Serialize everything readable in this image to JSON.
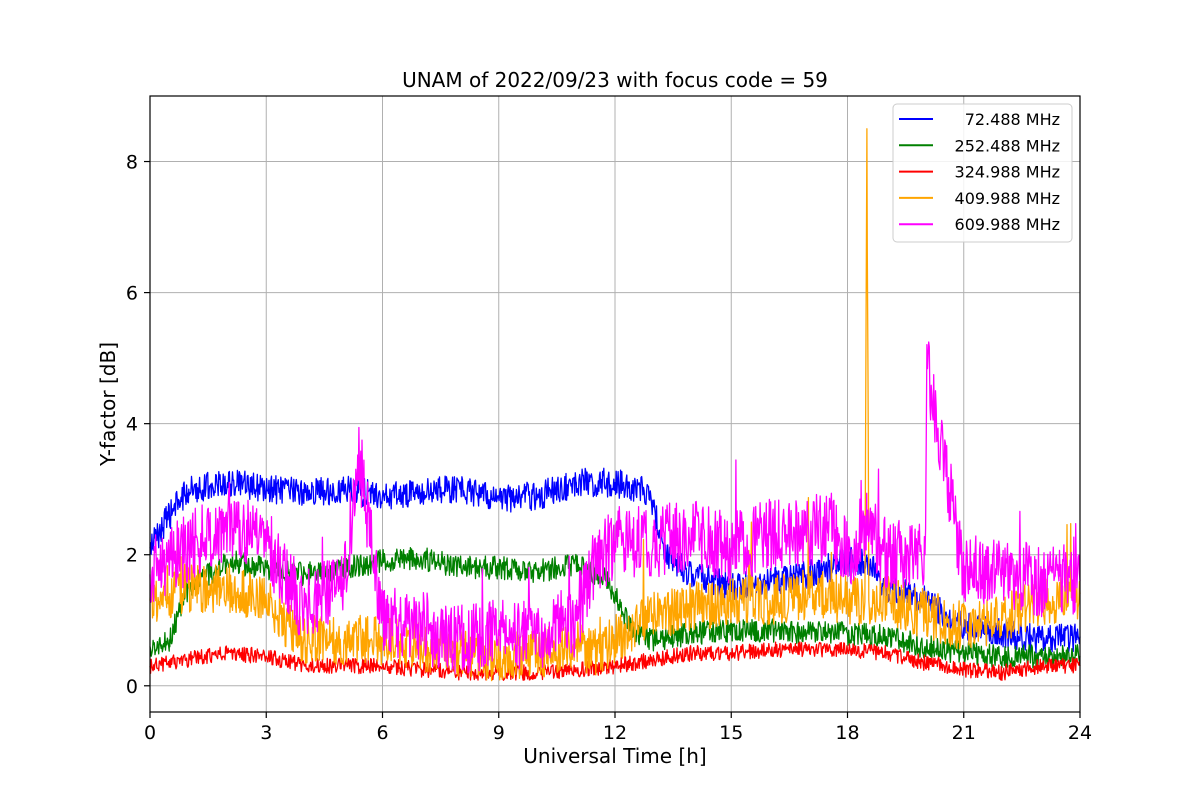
{
  "chart_data": {
    "type": "line",
    "title": "UNAM of 2022/09/23 with focus code = 59",
    "xlabel": "Universal Time [h]",
    "ylabel": "Y-factor [dB]",
    "xlim": [
      0,
      24
    ],
    "ylim": [
      -0.4,
      9.0
    ],
    "xticks": [
      0,
      3,
      6,
      9,
      12,
      15,
      18,
      21,
      24
    ],
    "yticks": [
      0,
      2,
      4,
      6,
      8
    ],
    "grid": true,
    "legend_position": "top-right",
    "series": [
      {
        "name": "72.488 MHz",
        "color": "#0000ff",
        "noise": 0.22,
        "x": [
          0,
          0.5,
          1,
          2,
          3,
          4,
          5,
          6,
          7,
          8,
          9,
          10,
          11,
          12,
          12.9,
          13.3,
          14,
          15,
          16,
          17,
          18,
          18.5,
          19,
          20,
          21,
          22,
          23,
          24
        ],
        "y": [
          2.1,
          2.6,
          3.0,
          3.1,
          3.0,
          2.95,
          3.0,
          2.9,
          2.95,
          3.0,
          2.85,
          2.9,
          3.1,
          3.1,
          2.95,
          2.0,
          1.7,
          1.5,
          1.6,
          1.7,
          1.9,
          1.9,
          1.5,
          1.3,
          0.9,
          0.8,
          0.7,
          0.75
        ]
      },
      {
        "name": "252.488 MHz",
        "color": "#008000",
        "noise": 0.18,
        "x": [
          0,
          0.5,
          1,
          2,
          3,
          4,
          5,
          6,
          7,
          8,
          9,
          10,
          11,
          11.8,
          12.5,
          13,
          14,
          15,
          16,
          17,
          18,
          19,
          20,
          21,
          22,
          23,
          24
        ],
        "y": [
          0.6,
          0.7,
          1.5,
          1.9,
          1.8,
          1.7,
          1.8,
          1.9,
          1.95,
          1.8,
          1.8,
          1.75,
          1.85,
          1.6,
          0.8,
          0.7,
          0.8,
          0.85,
          0.85,
          0.8,
          0.8,
          0.75,
          0.6,
          0.5,
          0.45,
          0.45,
          0.45
        ]
      },
      {
        "name": "324.988 MHz",
        "color": "#ff0000",
        "noise": 0.12,
        "x": [
          0,
          1,
          2,
          3,
          4,
          5,
          6,
          7,
          8,
          9,
          10,
          11,
          12,
          13,
          14,
          15,
          16,
          17,
          18,
          19,
          20,
          21,
          22,
          23,
          24
        ],
        "y": [
          0.3,
          0.4,
          0.5,
          0.45,
          0.3,
          0.3,
          0.3,
          0.25,
          0.2,
          0.2,
          0.2,
          0.25,
          0.3,
          0.4,
          0.5,
          0.5,
          0.55,
          0.55,
          0.55,
          0.5,
          0.35,
          0.25,
          0.2,
          0.3,
          0.3
        ]
      },
      {
        "name": "409.988 MHz",
        "color": "#ffa500",
        "noise": 0.38,
        "x": [
          0,
          1,
          2,
          3,
          3.6,
          4,
          5,
          6,
          7,
          8,
          9,
          10,
          11,
          11.6,
          12,
          13,
          14,
          15,
          16,
          17,
          18,
          18.45,
          18.5,
          18.55,
          19,
          20,
          21,
          22,
          23,
          24
        ],
        "y": [
          1.3,
          1.5,
          1.5,
          1.3,
          0.9,
          0.7,
          0.7,
          0.7,
          0.6,
          0.5,
          0.4,
          0.5,
          0.6,
          0.5,
          0.7,
          1.1,
          1.2,
          1.3,
          1.3,
          1.4,
          1.3,
          1.3,
          8.5,
          1.3,
          1.3,
          1.1,
          0.9,
          1.0,
          1.3,
          1.4
        ]
      },
      {
        "name": "609.988 MHz",
        "color": "#ff00ff",
        "noise": 0.55,
        "x": [
          0,
          1,
          2,
          3,
          3.5,
          4,
          5,
          5.4,
          6,
          7,
          8,
          9,
          10,
          11,
          11.5,
          12,
          13,
          14,
          15,
          16,
          17,
          17.5,
          18,
          18.5,
          19,
          20,
          20.05,
          21,
          22,
          23,
          24
        ],
        "y": [
          1.7,
          2.1,
          2.5,
          2.2,
          1.6,
          1.2,
          1.6,
          3.5,
          1.0,
          0.9,
          0.7,
          0.8,
          0.8,
          1.0,
          1.9,
          2.2,
          2.2,
          2.3,
          2.1,
          2.3,
          2.3,
          2.5,
          2.0,
          2.5,
          2.0,
          2.0,
          4.9,
          1.8,
          1.7,
          1.6,
          1.6
        ]
      }
    ]
  }
}
